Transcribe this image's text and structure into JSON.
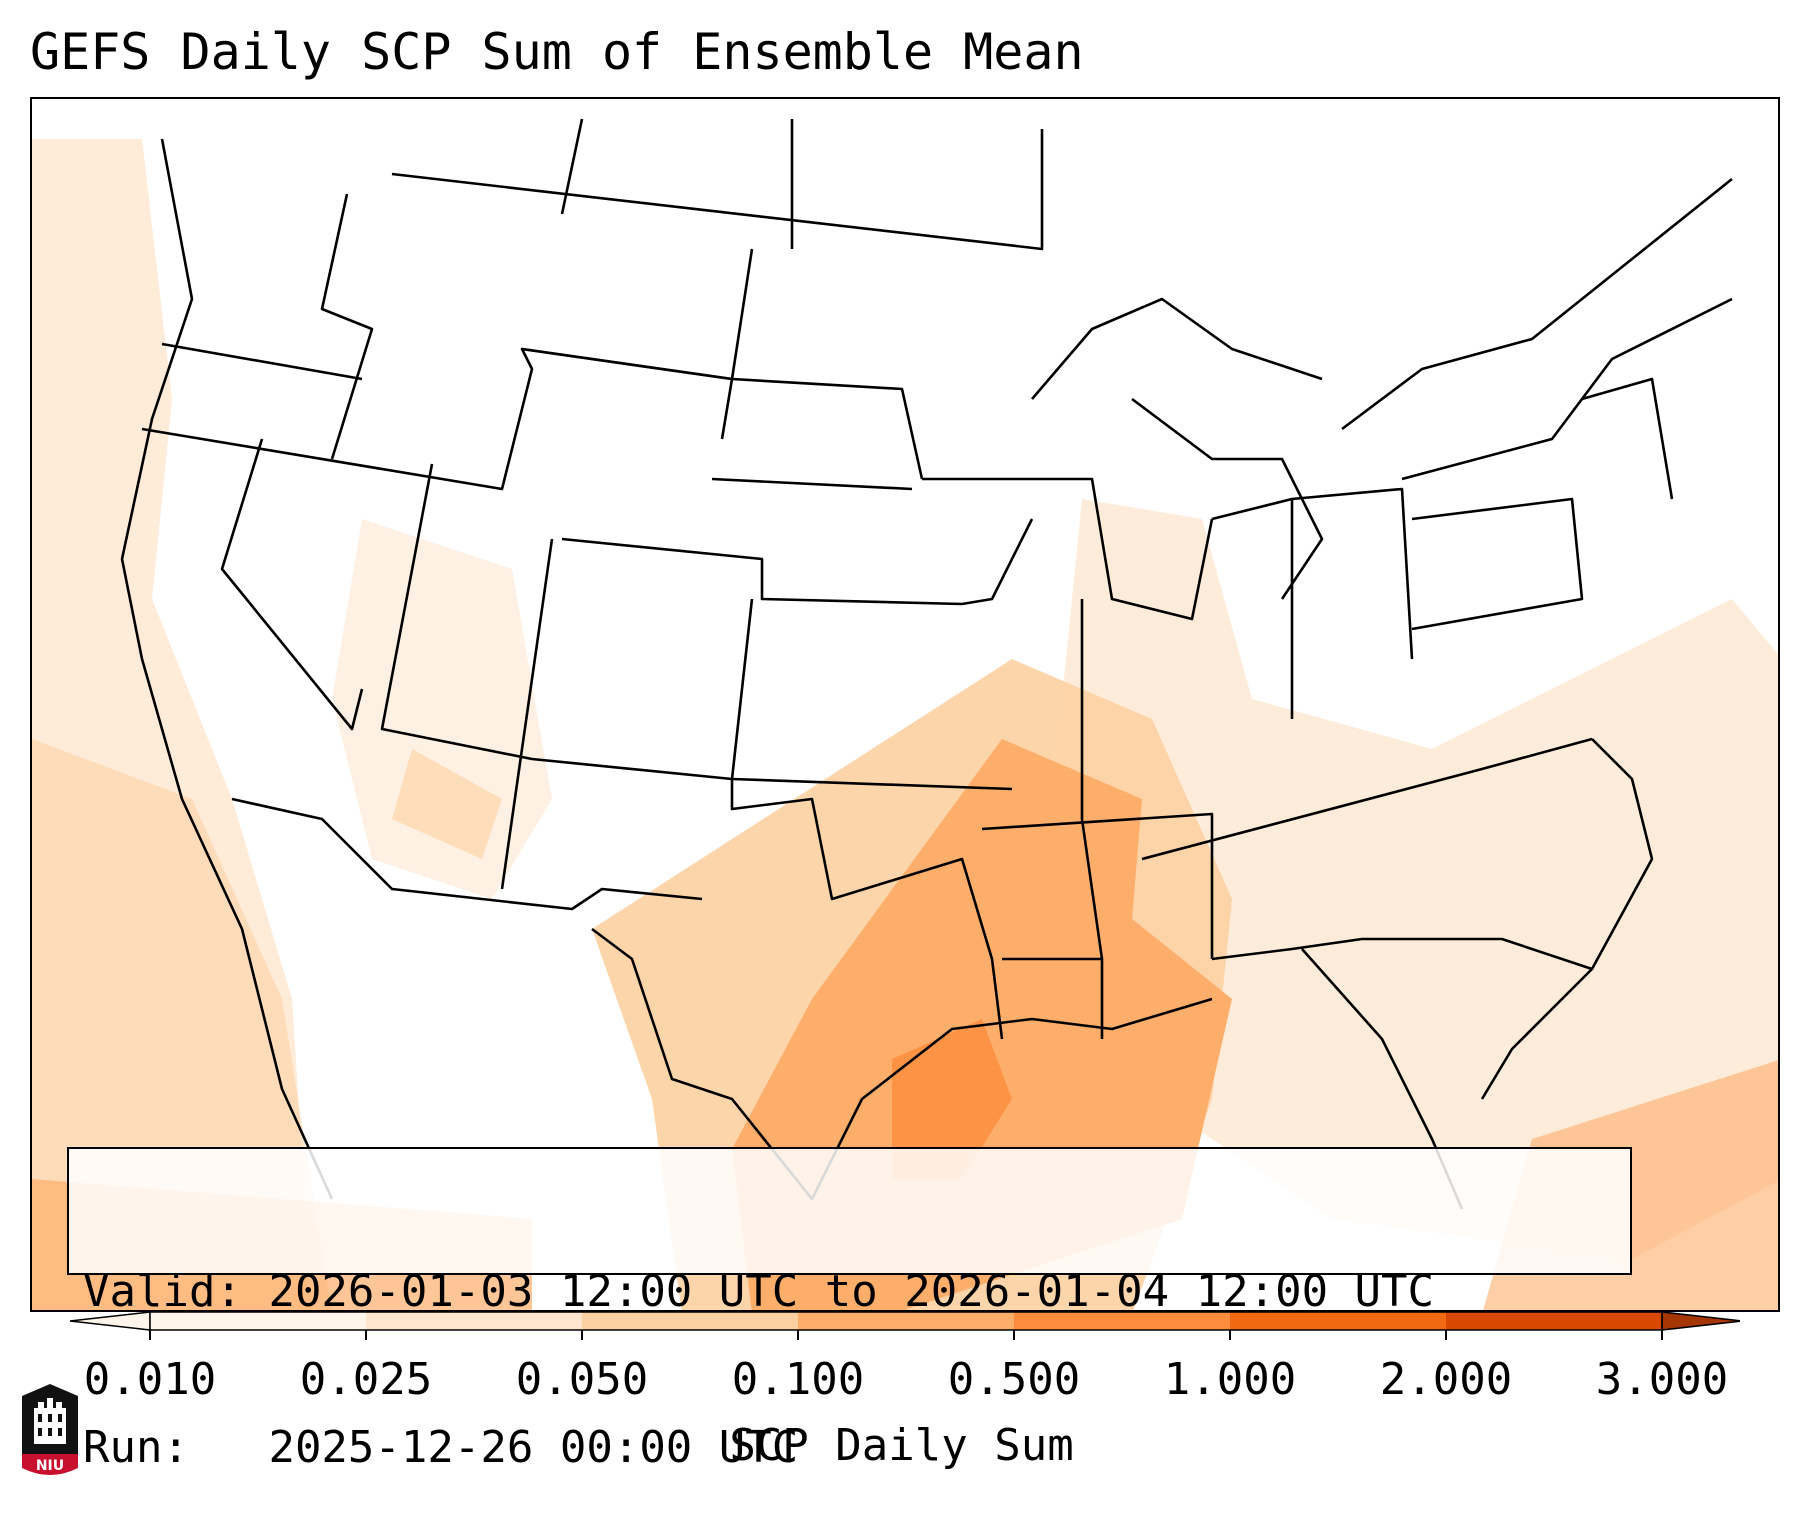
{
  "title": "GEFS Daily SCP Sum of Ensemble Mean",
  "info": {
    "valid_label": "Valid:",
    "valid_value": "2026-01-03 12:00 UTC to 2026-01-04 12:00 UTC",
    "run_label": "Run:",
    "run_value": "2025-12-26 00:00 UTC"
  },
  "colorbar": {
    "title": "SCP Daily Sum",
    "ticks": [
      "0.010",
      "0.025",
      "0.050",
      "0.100",
      "0.500",
      "1.000",
      "2.000",
      "3.000"
    ],
    "colors": [
      "#fff5eb",
      "#fee6ce",
      "#fdd0a2",
      "#fdae6b",
      "#fd8d3c",
      "#f16913",
      "#d94801",
      "#a63603"
    ],
    "extend": "both"
  },
  "logo": {
    "text": "NIU",
    "color": "#c8102e"
  }
}
